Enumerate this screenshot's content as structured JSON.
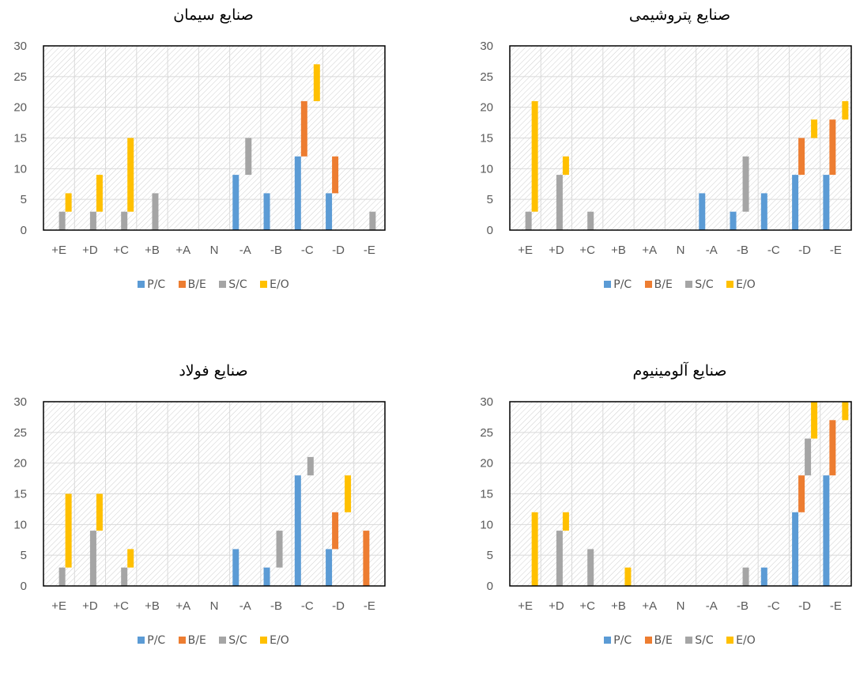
{
  "colors": {
    "P/C": "#5B9BD5",
    "B/E": "#ED7D31",
    "S/C": "#A5A5A5",
    "E/O": "#FFC000"
  },
  "chart_data": [
    {
      "type": "bar",
      "stacked": true,
      "title": "صنایع سیمان",
      "categories": [
        "+E",
        "+D",
        "+C",
        "+B",
        "+A",
        "N",
        "-A",
        "-B",
        "-C",
        "-D",
        "-E"
      ],
      "ylim": [
        0,
        30
      ],
      "yticks": [
        0,
        5,
        10,
        15,
        20,
        25,
        30
      ],
      "legend_position": "bottom",
      "series": [
        {
          "name": "P/C",
          "values": [
            0,
            0,
            0,
            0,
            0,
            0,
            9,
            6,
            12,
            6,
            0
          ]
        },
        {
          "name": "B/E",
          "values": [
            0,
            0,
            0,
            0,
            0,
            0,
            0,
            0,
            9,
            6,
            0
          ]
        },
        {
          "name": "S/C",
          "values": [
            3,
            3,
            3,
            6,
            0,
            0,
            6,
            0,
            0,
            0,
            3
          ]
        },
        {
          "name": "E/O",
          "values": [
            3,
            6,
            12,
            0,
            0,
            0,
            0,
            0,
            6,
            0,
            0
          ]
        }
      ]
    },
    {
      "type": "bar",
      "stacked": true,
      "title": "صنایع پتروشیمی",
      "categories": [
        "+E",
        "+D",
        "+C",
        "+B",
        "+A",
        "N",
        "-A",
        "-B",
        "-C",
        "-D",
        "-E"
      ],
      "ylim": [
        0,
        30
      ],
      "yticks": [
        0,
        5,
        10,
        15,
        20,
        25,
        30
      ],
      "legend_position": "bottom",
      "series": [
        {
          "name": "P/C",
          "values": [
            0,
            0,
            0,
            0,
            0,
            0,
            6,
            3,
            6,
            9,
            9
          ]
        },
        {
          "name": "B/E",
          "values": [
            0,
            0,
            0,
            0,
            0,
            0,
            0,
            0,
            0,
            6,
            9
          ]
        },
        {
          "name": "S/C",
          "values": [
            3,
            9,
            3,
            0,
            0,
            0,
            0,
            9,
            0,
            0,
            0
          ]
        },
        {
          "name": "E/O",
          "values": [
            18,
            3,
            0,
            0,
            0,
            0,
            0,
            0,
            0,
            3,
            3
          ]
        }
      ]
    },
    {
      "type": "bar",
      "stacked": true,
      "title": "صنایع فولاد",
      "categories": [
        "+E",
        "+D",
        "+C",
        "+B",
        "+A",
        "N",
        "-A",
        "-B",
        "-C",
        "-D",
        "-E"
      ],
      "ylim": [
        0,
        30
      ],
      "yticks": [
        0,
        5,
        10,
        15,
        20,
        25,
        30
      ],
      "legend_position": "bottom",
      "series": [
        {
          "name": "P/C",
          "values": [
            0,
            0,
            0,
            0,
            0,
            0,
            6,
            3,
            18,
            6,
            0
          ]
        },
        {
          "name": "B/E",
          "values": [
            0,
            0,
            0,
            0,
            0,
            0,
            0,
            0,
            0,
            6,
            9
          ]
        },
        {
          "name": "S/C",
          "values": [
            3,
            9,
            3,
            0,
            0,
            0,
            0,
            6,
            3,
            0,
            0
          ]
        },
        {
          "name": "E/O",
          "values": [
            12,
            6,
            3,
            0,
            0,
            0,
            0,
            0,
            0,
            6,
            0
          ]
        }
      ]
    },
    {
      "type": "bar",
      "stacked": true,
      "title": "صنایع آلومینیوم",
      "categories": [
        "+E",
        "+D",
        "+C",
        "+B",
        "+A",
        "N",
        "-A",
        "-B",
        "-C",
        "-D",
        "-E"
      ],
      "ylim": [
        0,
        30
      ],
      "yticks": [
        0,
        5,
        10,
        15,
        20,
        25,
        30
      ],
      "legend_position": "bottom",
      "series": [
        {
          "name": "P/C",
          "values": [
            0,
            0,
            0,
            0,
            0,
            0,
            0,
            0,
            3,
            12,
            18
          ]
        },
        {
          "name": "B/E",
          "values": [
            0,
            0,
            0,
            0,
            0,
            0,
            0,
            0,
            0,
            6,
            9
          ]
        },
        {
          "name": "S/C",
          "values": [
            0,
            9,
            6,
            0,
            0,
            0,
            0,
            3,
            0,
            6,
            0
          ]
        },
        {
          "name": "E/O",
          "values": [
            12,
            3,
            0,
            3,
            0,
            0,
            0,
            0,
            0,
            6,
            3
          ]
        }
      ]
    }
  ]
}
